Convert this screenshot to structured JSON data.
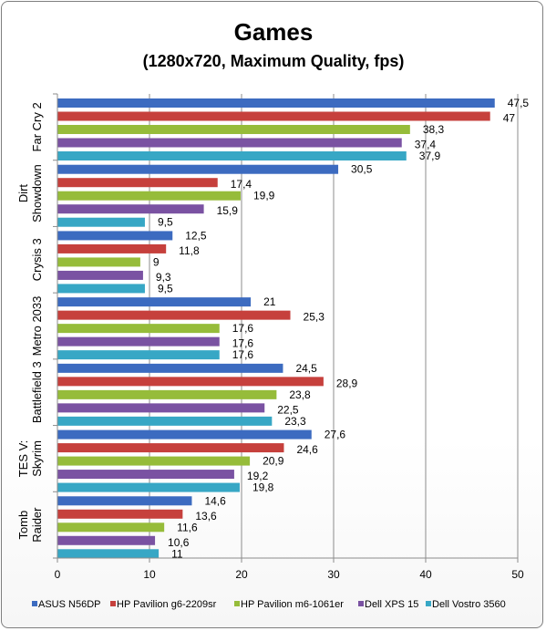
{
  "chart_data": {
    "type": "bar",
    "orientation": "horizontal",
    "title": "Games",
    "subtitle": "(1280x720, Maximum Quality, fps)",
    "categories": [
      "Far Cry 2",
      "Dirt Showdown",
      "Crysis 3",
      "Metro 2033",
      "Battlefield 3",
      "TES V: Skyrim",
      "Tomb Raider"
    ],
    "category_lines": [
      [
        "Far Cry 2"
      ],
      [
        "Dirt",
        "Showdown"
      ],
      [
        "Crysis 3"
      ],
      [
        "Metro 2033"
      ],
      [
        "Battlefield 3"
      ],
      [
        "TES V:",
        "Skyrim"
      ],
      [
        "Tomb",
        "Raider"
      ]
    ],
    "series": [
      {
        "name": "ASUS N56DP",
        "color": "#3c6bc0",
        "values": [
          47.5,
          30.5,
          12.5,
          21,
          24.5,
          27.6,
          14.6
        ],
        "labels": [
          "47,5",
          "30,5",
          "12,5",
          "21",
          "24,5",
          "27,6",
          "14,6"
        ]
      },
      {
        "name": "HP Pavilion g6-2209sr",
        "color": "#c6403c",
        "values": [
          47,
          17.4,
          11.8,
          25.3,
          28.9,
          24.6,
          13.6
        ],
        "labels": [
          "47",
          "17,4",
          "11,8",
          "25,3",
          "28,9",
          "24,6",
          "13,6"
        ]
      },
      {
        "name": "HP Pavilion m6-1061er",
        "color": "#96bc3a",
        "values": [
          38.3,
          19.9,
          9,
          17.6,
          23.8,
          20.9,
          11.6
        ],
        "labels": [
          "38,3",
          "19,9",
          "9",
          "17,6",
          "23,8",
          "20,9",
          "11,6"
        ]
      },
      {
        "name": "Dell XPS 15",
        "color": "#7a52a2",
        "values": [
          37.4,
          15.9,
          9.3,
          17.6,
          22.5,
          19.2,
          10.6
        ],
        "labels": [
          "37,4",
          "15,9",
          "9,3",
          "17,6",
          "22,5",
          "19,2",
          "10,6"
        ]
      },
      {
        "name": "Dell Vostro 3560",
        "color": "#37a7c5",
        "values": [
          37.9,
          9.5,
          9.5,
          17.6,
          23.3,
          19.8,
          11
        ],
        "labels": [
          "37,9",
          "9,5",
          "9,5",
          "17,6",
          "23,3",
          "19,8",
          "11"
        ]
      }
    ],
    "xlim": [
      0,
      50
    ],
    "xticks": [
      0,
      10,
      20,
      30,
      40,
      50
    ],
    "xtick_labels": [
      "0",
      "10",
      "20",
      "30",
      "40",
      "50"
    ],
    "grid": true,
    "legend_position": "bottom"
  }
}
